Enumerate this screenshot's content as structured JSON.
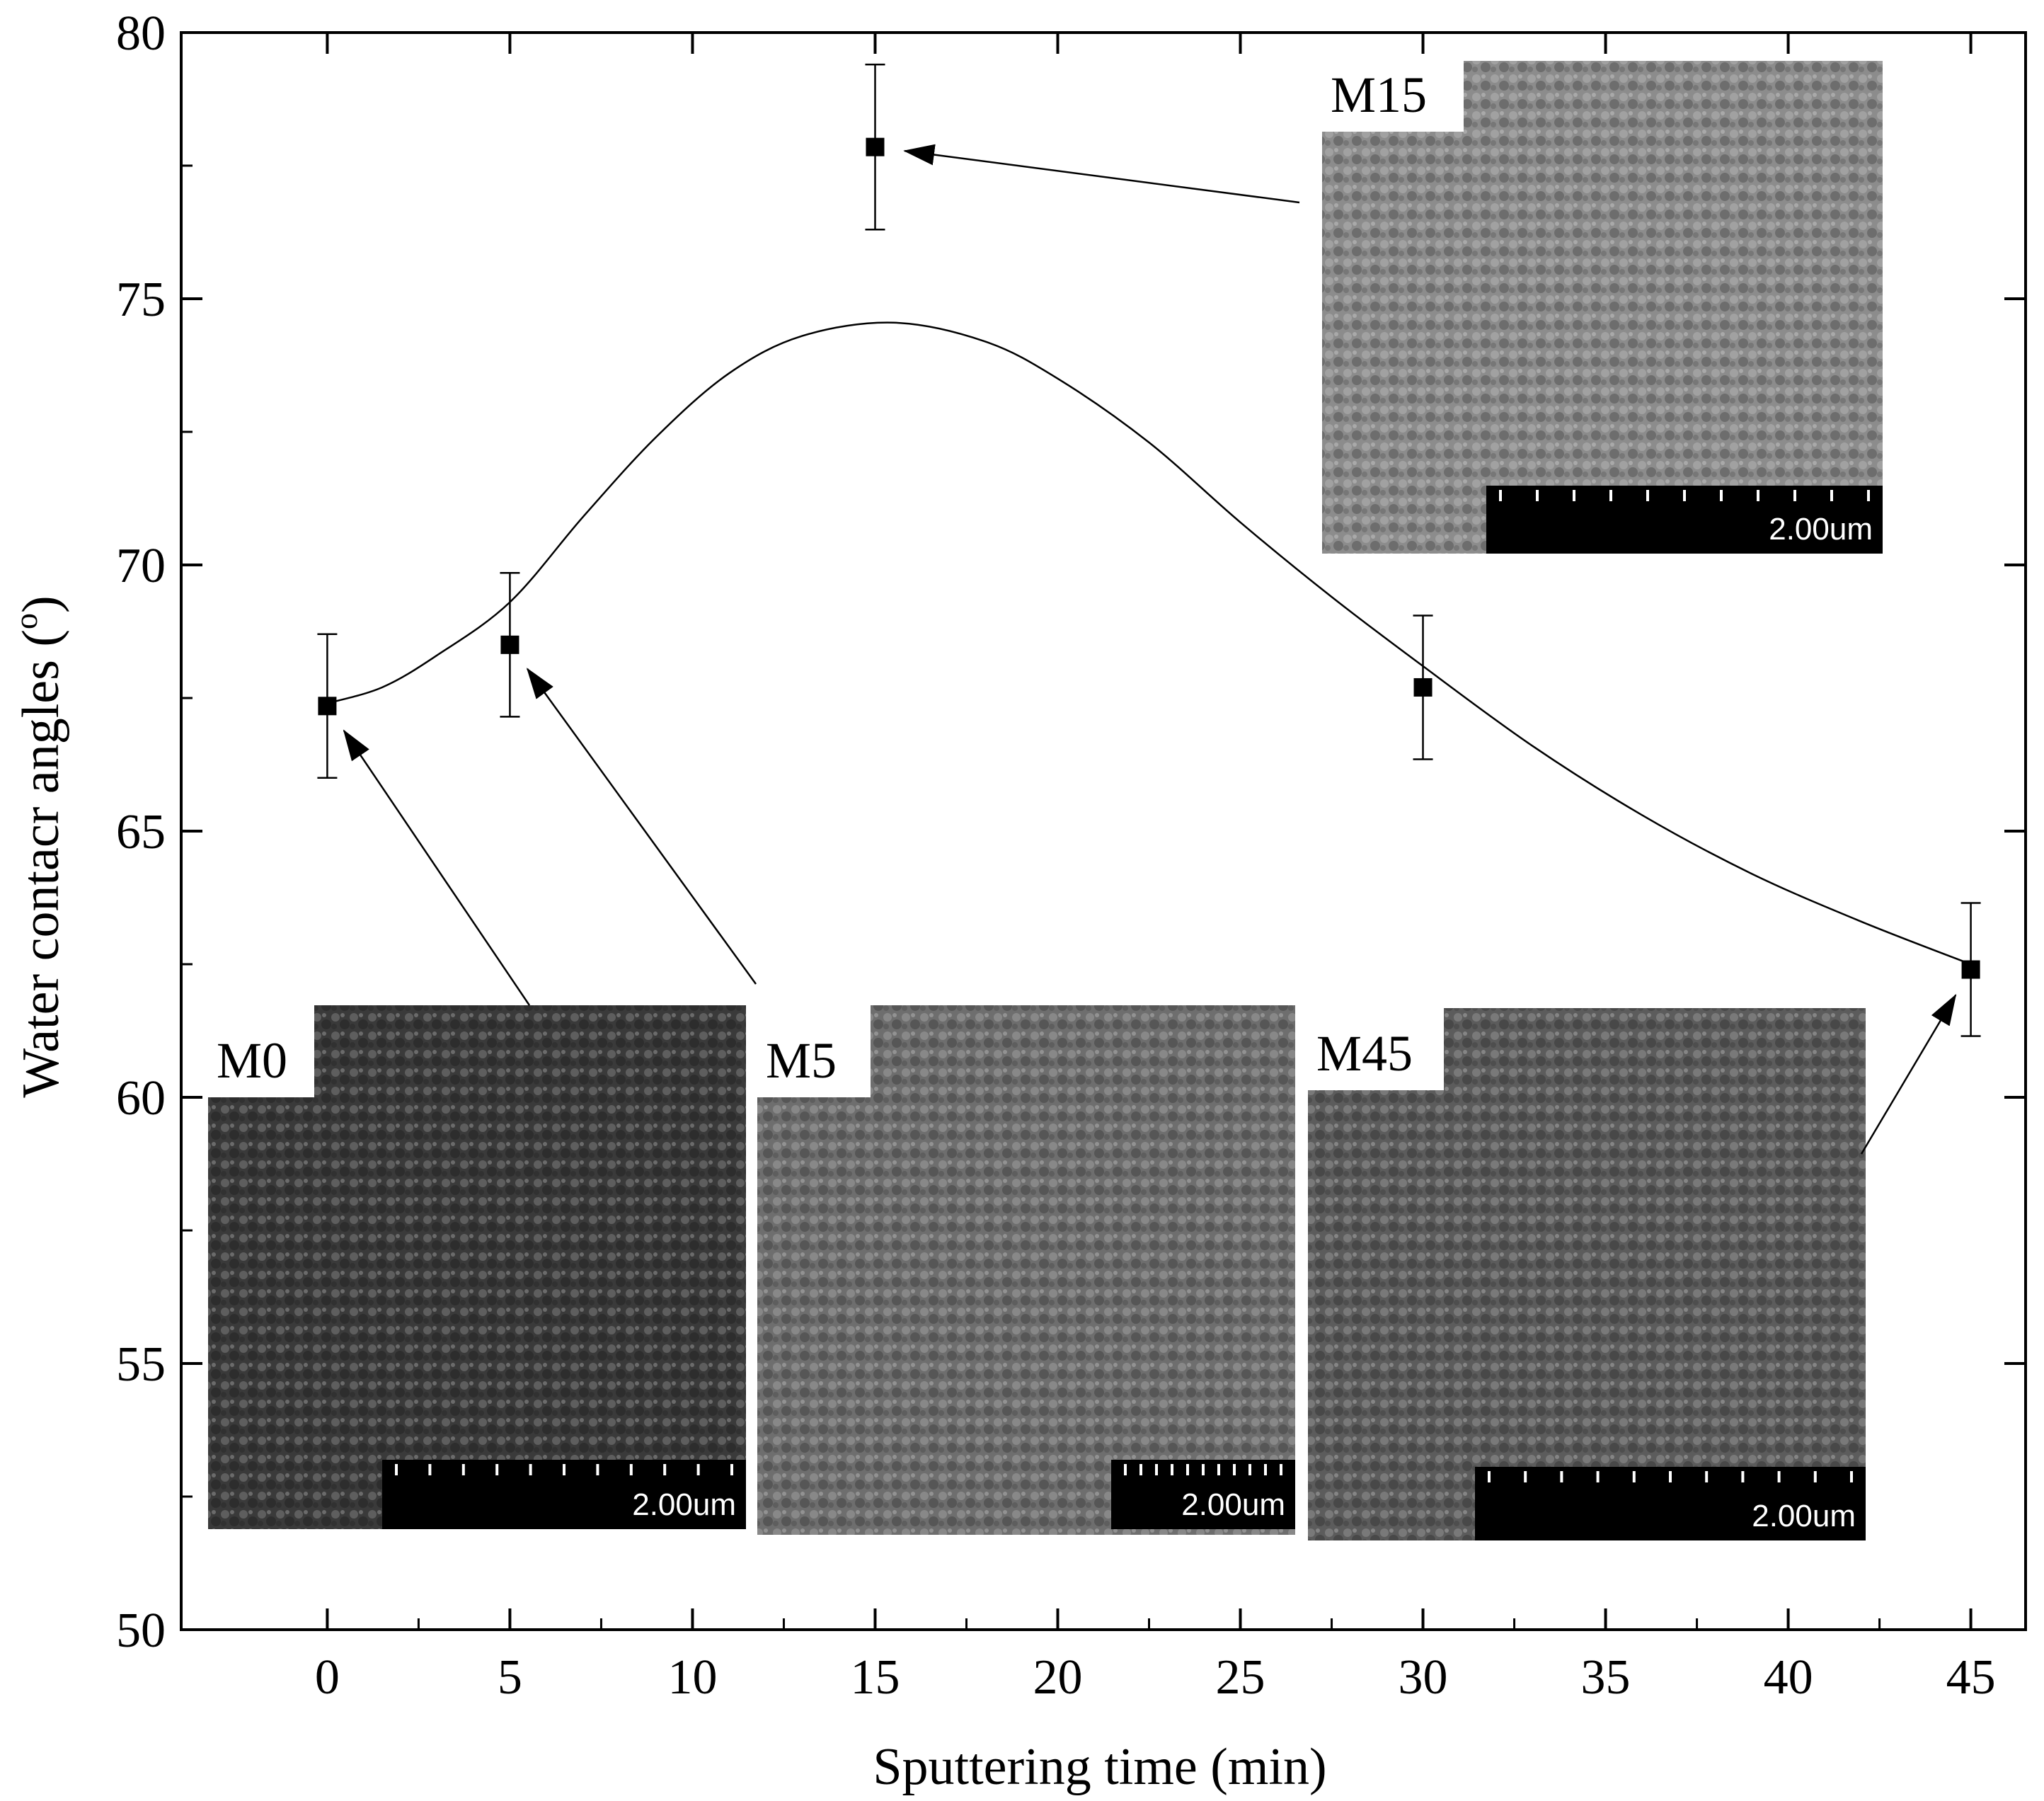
{
  "chart_data": {
    "type": "scatter",
    "xlabel": "Sputtering time (min)",
    "ylabel_main": "Water contacr angles (",
    "ylabel_sup": "o",
    "ylabel_end": ")",
    "xlim": [
      -4,
      46.5
    ],
    "ylim": [
      50,
      80
    ],
    "xticks": [
      0,
      5,
      10,
      15,
      20,
      25,
      30,
      35,
      40,
      45
    ],
    "yticks": [
      50,
      55,
      60,
      65,
      70,
      75,
      80
    ],
    "points": [
      {
        "x": 0,
        "y": 67.35,
        "err": 1.35
      },
      {
        "x": 5,
        "y": 68.5,
        "err": 1.35
      },
      {
        "x": 15,
        "y": 77.85,
        "err": 1.55
      },
      {
        "x": 30,
        "y": 67.7,
        "err": 1.35
      },
      {
        "x": 45,
        "y": 62.4,
        "err": 1.25
      }
    ],
    "fit_curve": [
      [
        0,
        67.4
      ],
      [
        1.5,
        67.7
      ],
      [
        3,
        68.3
      ],
      [
        5,
        69.3
      ],
      [
        7,
        70.9
      ],
      [
        9,
        72.4
      ],
      [
        11,
        73.6
      ],
      [
        13,
        74.3
      ],
      [
        15.5,
        74.55
      ],
      [
        18,
        74.2
      ],
      [
        20,
        73.5
      ],
      [
        22.5,
        72.3
      ],
      [
        25,
        70.8
      ],
      [
        27.5,
        69.4
      ],
      [
        30,
        68.1
      ],
      [
        33,
        66.6
      ],
      [
        36,
        65.3
      ],
      [
        39,
        64.2
      ],
      [
        42,
        63.3
      ],
      [
        45,
        62.5
      ]
    ],
    "grid": false,
    "insets": [
      {
        "label": "M0",
        "scale": "2.00um",
        "tone": "#3a3a3a",
        "target": 0
      },
      {
        "label": "M5",
        "scale": "2.00um",
        "tone": "#6e6e6e",
        "target": 1
      },
      {
        "label": "M15",
        "scale": "2.00um",
        "tone": "#8c8c8c",
        "target": 2
      },
      {
        "label": "M45",
        "scale": "2.00um",
        "tone": "#5c5c5c",
        "target": 4
      }
    ]
  }
}
